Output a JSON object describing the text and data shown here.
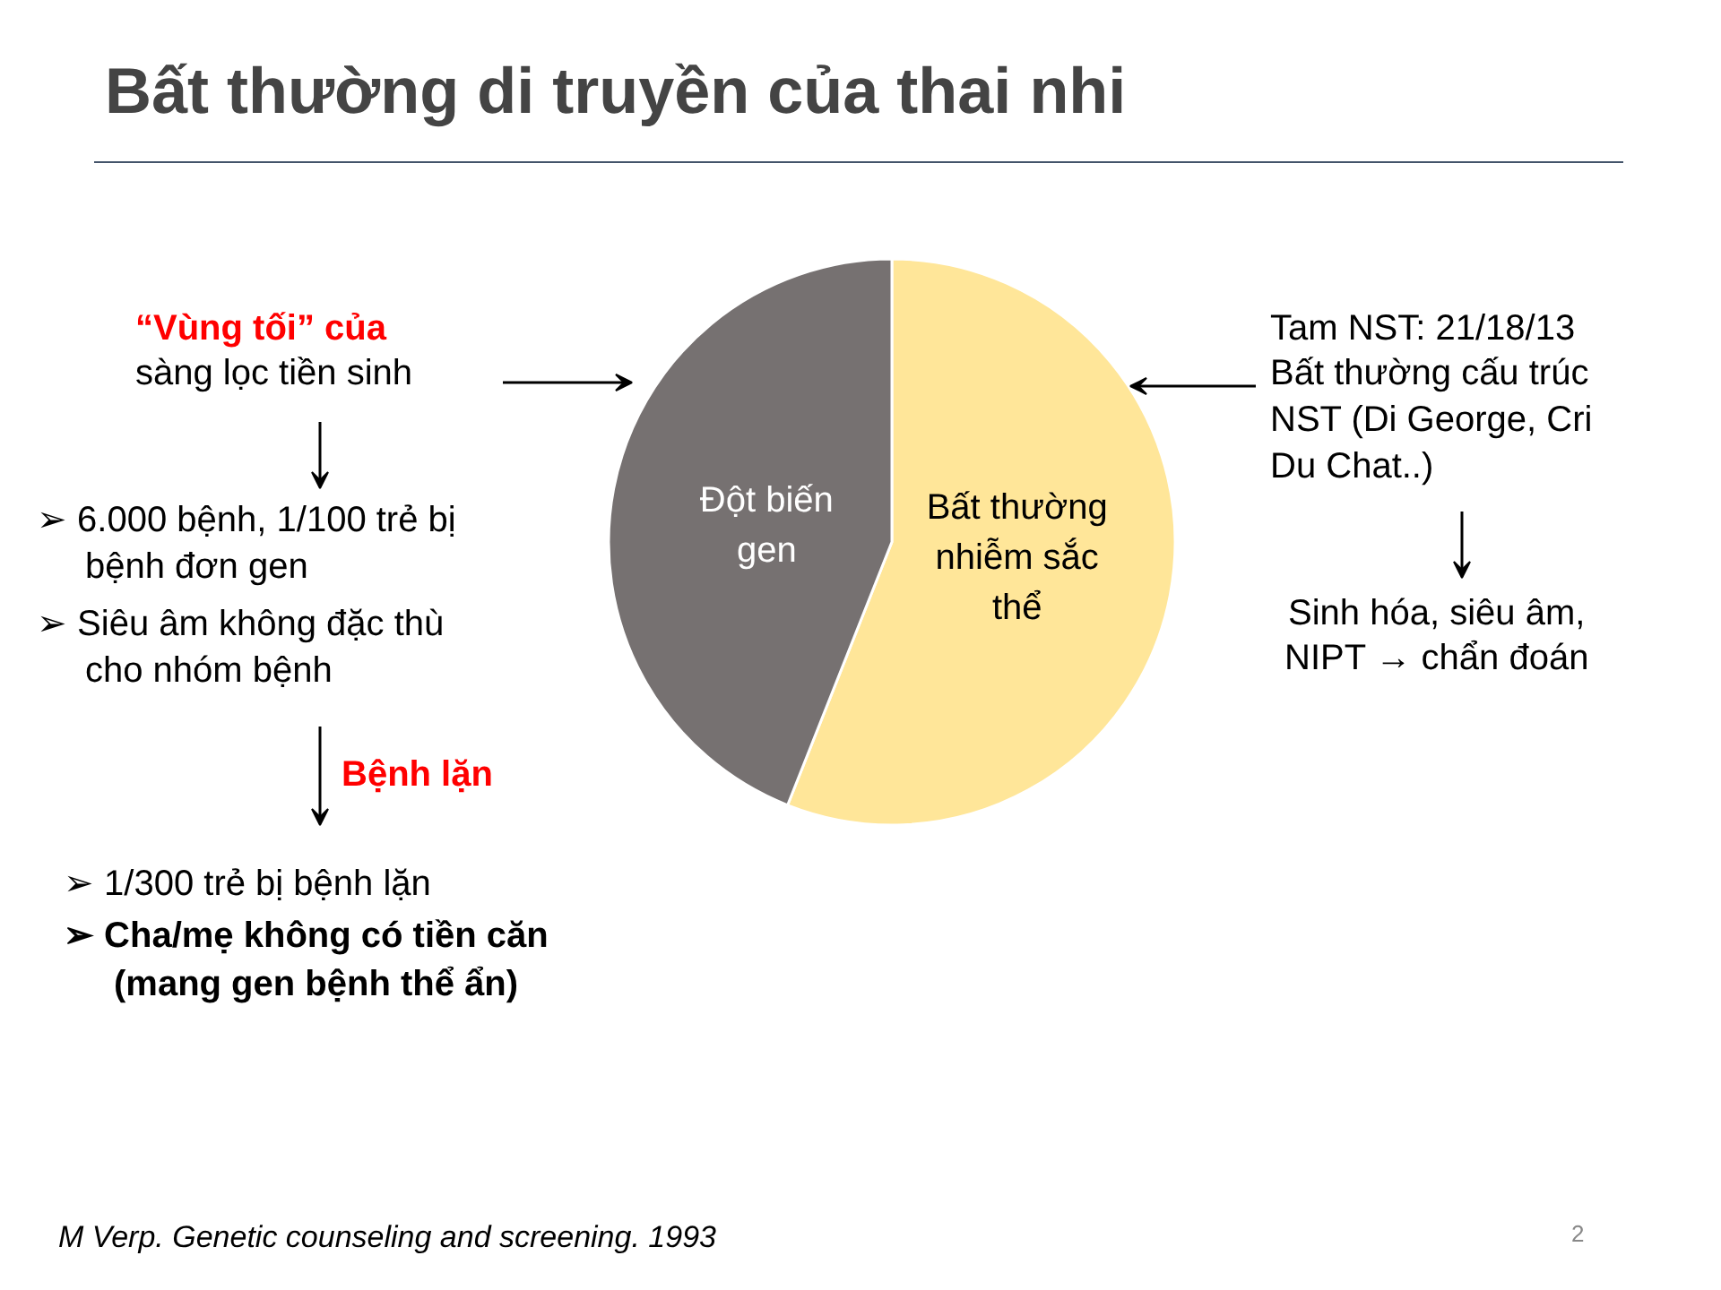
{
  "chart_data": {
    "type": "pie",
    "title": "Bất thường di truyền của thai nhi",
    "categories": [
      "Bất thường nhiễm sắc thể",
      "Đột biến gen"
    ],
    "values": [
      56,
      44
    ],
    "colors": [
      "#ffe699",
      "#767171"
    ],
    "legend": false,
    "annotations": [
      "“Vùng tối” của",
      "sàng lọc tiền sinh",
      "➢ 6.000 bệnh, 1/100 trẻ bị",
      "bệnh đơn gen",
      "➢ Siêu âm không đặc thù",
      "cho nhóm bệnh",
      "Bệnh lặn",
      "➢ 1/300 trẻ bị bệnh lặn",
      "➢ Cha/mẹ không có tiền căn",
      "(mang gen bệnh thể ẩn)",
      "Tam NST: 21/18/13",
      "Bất thường cấu trúc",
      "NST (Di George, Cri",
      "Du Chat..)",
      "Sinh hóa, siêu âm,",
      "NIPT → chẩn đoán",
      "M Verp. Genetic counseling and screening. 1993",
      "2"
    ]
  }
}
